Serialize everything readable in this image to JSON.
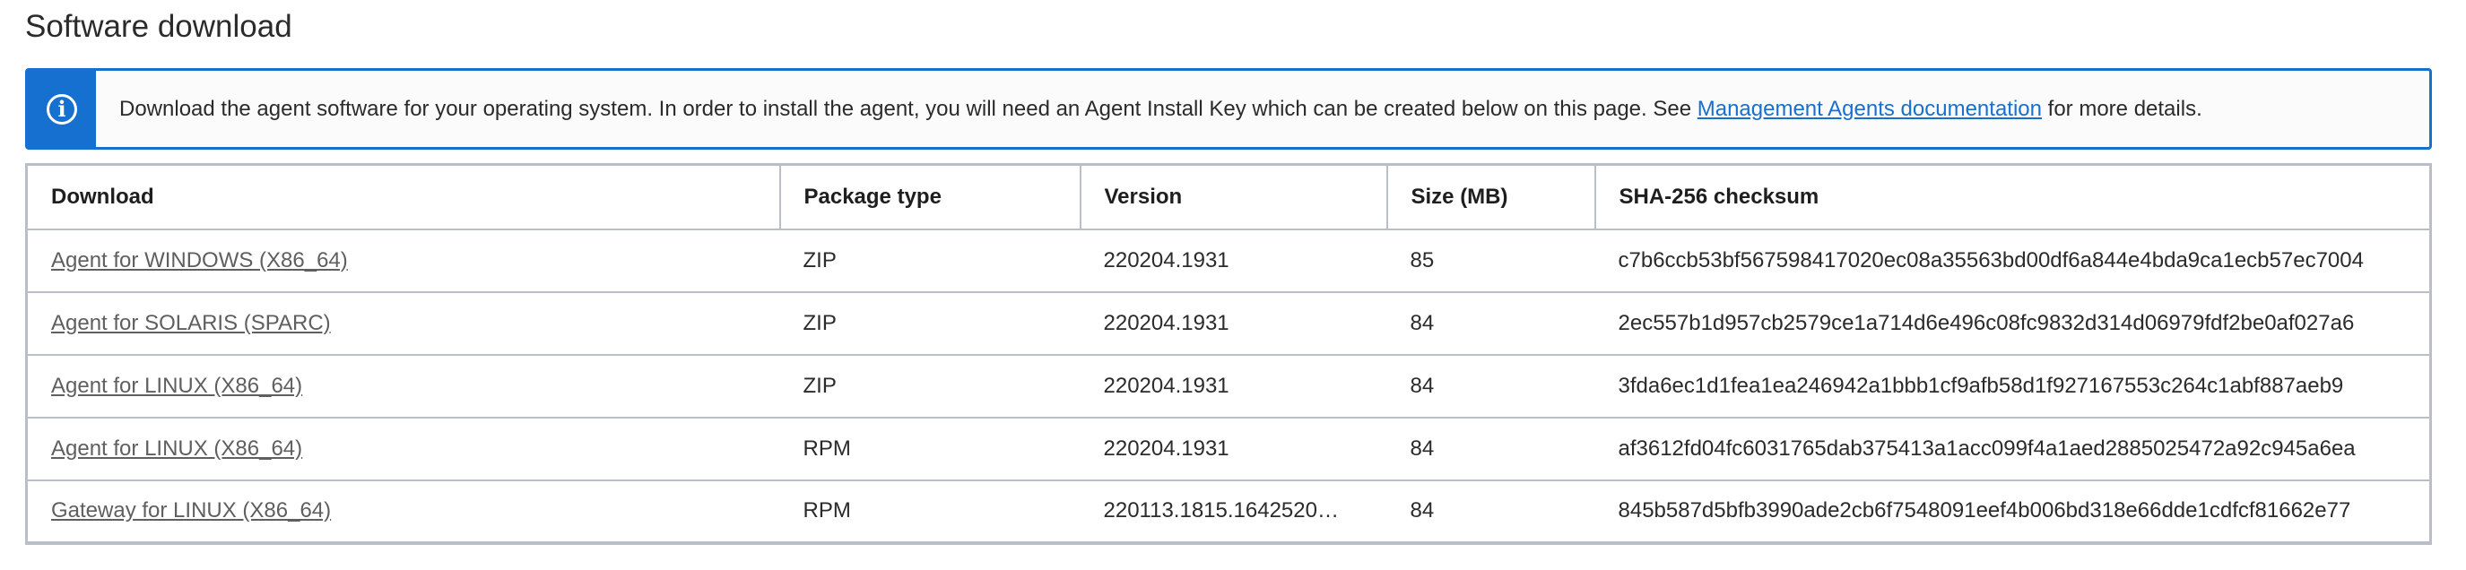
{
  "title": "Software download",
  "banner": {
    "icon": "info-icon",
    "text_before": "Download the agent software for your operating system. In order to install the agent, you will need an Agent Install Key which can be created below on this page. See ",
    "link": "Management Agents documentation",
    "text_after": " for more details."
  },
  "table": {
    "headers": [
      "Download",
      "Package type",
      "Version",
      "Size (MB)",
      "SHA-256 checksum"
    ],
    "rows": [
      {
        "download": "Agent for WINDOWS (X86_64)",
        "type": "ZIP",
        "version": "220204.1931",
        "size": "85",
        "checksum": "c7b6ccb53bf567598417020ec08a35563bd00df6a844e4bda9ca1ecb57ec7004"
      },
      {
        "download": "Agent for SOLARIS (SPARC)",
        "type": "ZIP",
        "version": "220204.1931",
        "size": "84",
        "checksum": "2ec557b1d957cb2579ce1a714d6e496c08fc9832d314d06979fdf2be0af027a6"
      },
      {
        "download": "Agent for LINUX (X86_64)",
        "type": "ZIP",
        "version": "220204.1931",
        "size": "84",
        "checksum": "3fda6ec1d1fea1ea246942a1bbb1cf9afb58d1f927167553c264c1abf887aeb9"
      },
      {
        "download": "Agent for LINUX (X86_64)",
        "type": "RPM",
        "version": "220204.1931",
        "size": "84",
        "checksum": "af3612fd04fc6031765dab375413a1acc099f4a1aed2885025472a92c945a6ea"
      },
      {
        "download": "Gateway for LINUX (X86_64)",
        "type": "RPM",
        "version": "220113.1815.1642520…",
        "size": "84",
        "checksum": "845b587d5bfb3990ade2cb6f7548091eef4b006bd318e66dde1cdfcf81662e77"
      }
    ]
  }
}
